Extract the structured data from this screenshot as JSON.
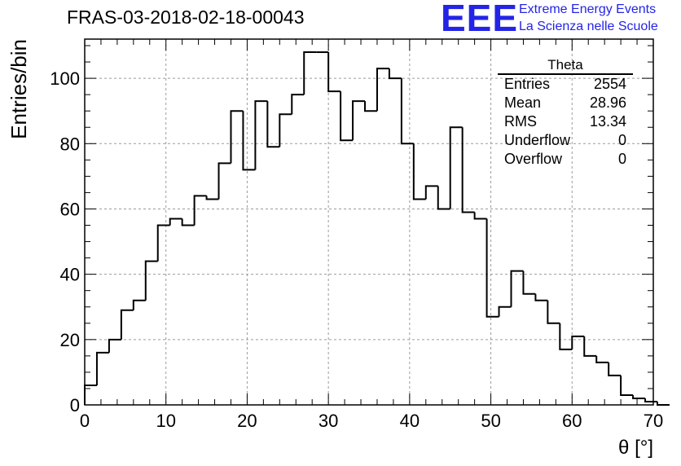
{
  "header": {
    "title": "FRAS-03-2018-02-18-00043",
    "logo_text": "EEE",
    "logo_line1": "Extreme Energy Events",
    "logo_line2": "La Scienza nelle Scuole",
    "logo_color": "#2424e6"
  },
  "stats": {
    "title": "Theta",
    "rows": [
      {
        "label": "Entries",
        "value": "2554"
      },
      {
        "label": "Mean",
        "value": "28.96"
      },
      {
        "label": "RMS",
        "value": "13.34"
      },
      {
        "label": "Underflow",
        "value": "0"
      },
      {
        "label": "Overflow",
        "value": "0"
      }
    ]
  },
  "chart_data": {
    "type": "bar",
    "style": "step-histogram",
    "xlabel": "θ [°]",
    "ylabel": "Entries/bin",
    "xlim": [
      0,
      70
    ],
    "ylim": [
      0,
      112
    ],
    "grid": true,
    "bin_width": 1.5,
    "x_ticks": [
      "0",
      "10",
      "20",
      "30",
      "40",
      "50",
      "60",
      "70"
    ],
    "y_ticks": [
      "0",
      "20",
      "40",
      "60",
      "80",
      "100"
    ],
    "bin_edges_start": 0,
    "values": [
      6,
      16,
      20,
      29,
      32,
      44,
      55,
      57,
      55,
      64,
      63,
      74,
      90,
      72,
      93,
      79,
      89,
      95,
      108,
      108,
      96,
      81,
      93,
      90,
      103,
      100,
      80,
      63,
      67,
      60,
      85,
      59,
      57,
      27,
      30,
      41,
      34,
      32,
      25,
      17,
      21,
      15,
      13,
      9,
      3,
      2,
      1,
      0
    ]
  }
}
